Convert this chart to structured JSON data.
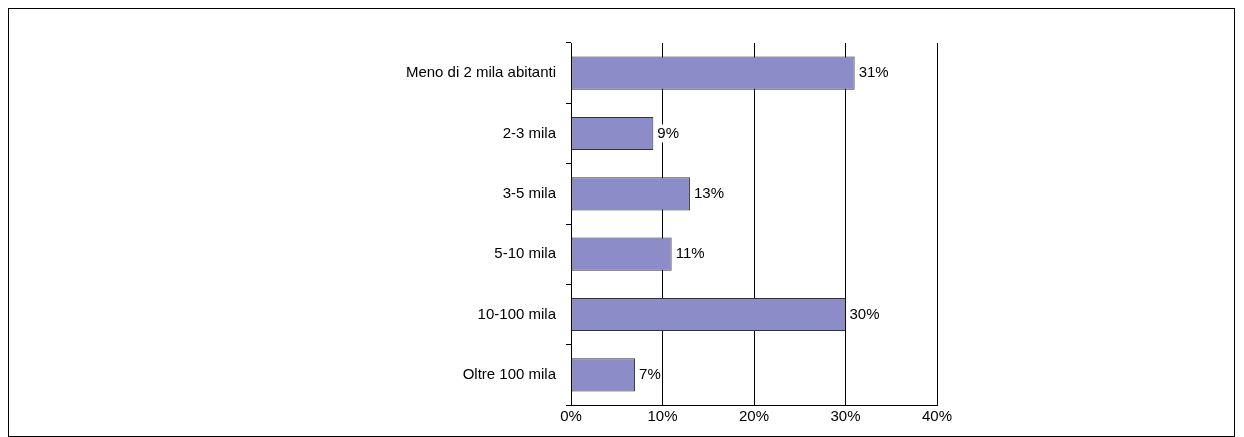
{
  "chart_data": {
    "type": "bar",
    "orientation": "horizontal",
    "categories": [
      "Meno di 2 mila abitanti",
      "2-3 mila",
      "3-5 mila",
      "5-10 mila",
      "10-100 mila",
      "Oltre 100 mila"
    ],
    "values": [
      31,
      9,
      13,
      11,
      30,
      7
    ],
    "value_labels": [
      "31%",
      "9%",
      "13%",
      "11%",
      "30%",
      "7%"
    ],
    "color": "#8c8cc8",
    "xlim": [
      0,
      40
    ],
    "xticks": [
      {
        "value": 0,
        "label": "0%"
      },
      {
        "value": 10,
        "label": "10%"
      },
      {
        "value": 20,
        "label": "20%"
      },
      {
        "value": 30,
        "label": "30%"
      },
      {
        "value": 40,
        "label": "40%"
      }
    ],
    "grid": "x",
    "legend": false
  }
}
